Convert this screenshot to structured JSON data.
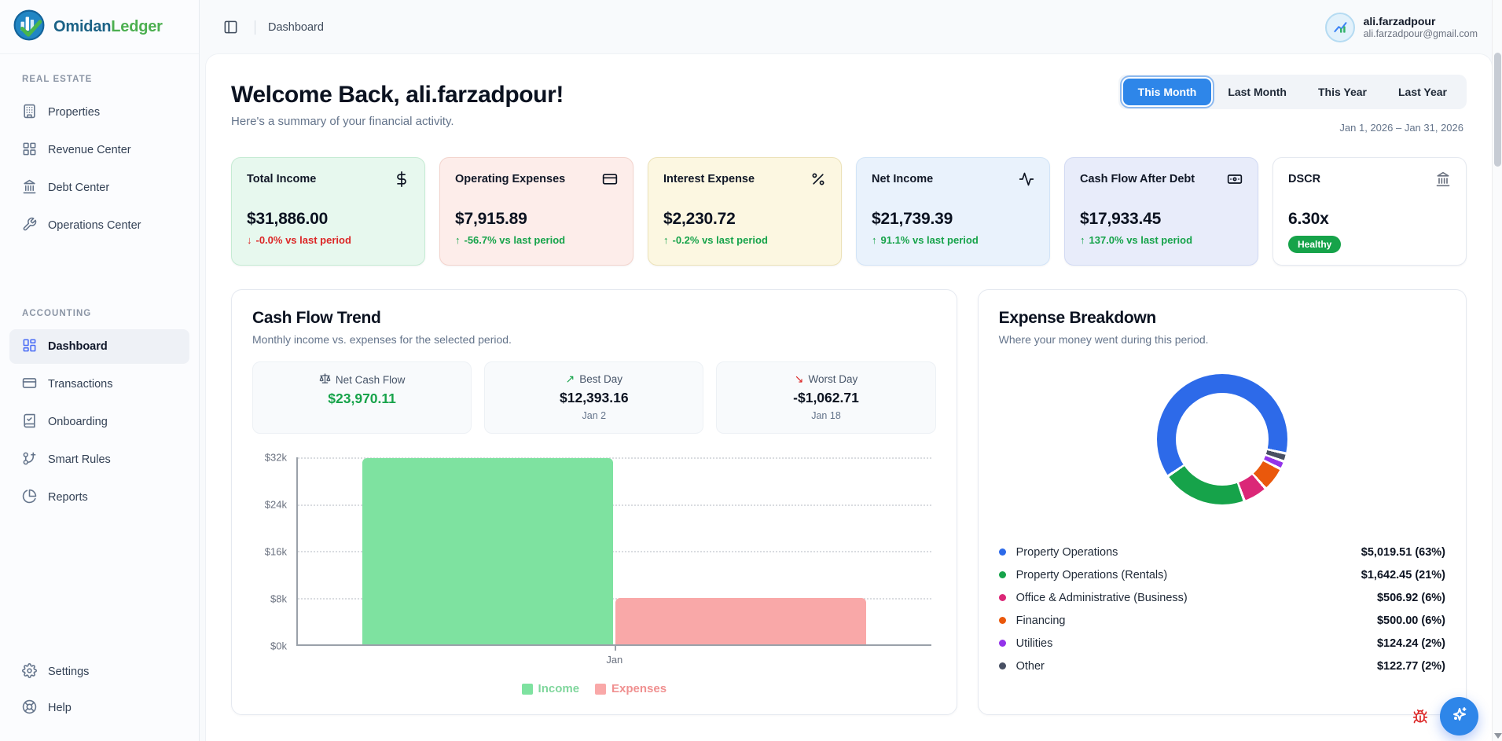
{
  "brand": {
    "primary": "Omidan",
    "secondary": "Ledger"
  },
  "sidebar": {
    "sections": [
      {
        "label": "REAL ESTATE",
        "items": [
          {
            "label": "Properties",
            "icon": "building-icon"
          },
          {
            "label": "Revenue Center",
            "icon": "layout-grid-icon"
          },
          {
            "label": "Debt Center",
            "icon": "landmark-icon"
          },
          {
            "label": "Operations Center",
            "icon": "wrench-icon"
          }
        ]
      },
      {
        "label": "ACCOUNTING",
        "items": [
          {
            "label": "Dashboard",
            "icon": "layout-dashboard-icon",
            "active": true
          },
          {
            "label": "Transactions",
            "icon": "credit-card-icon"
          },
          {
            "label": "Onboarding",
            "icon": "book-check-icon"
          },
          {
            "label": "Smart Rules",
            "icon": "smart-rules-icon"
          },
          {
            "label": "Reports",
            "icon": "pie-chart-icon"
          }
        ]
      }
    ],
    "footer_items": [
      {
        "label": "Settings",
        "icon": "gear-icon"
      },
      {
        "label": "Help",
        "icon": "life-buoy-icon"
      }
    ]
  },
  "header": {
    "breadcrumb": "Dashboard",
    "user": {
      "name": "ali.farzadpour",
      "email": "ali.farzadpour@gmail.com"
    }
  },
  "welcome": {
    "title": "Welcome Back, ali.farzadpour!",
    "subtitle": "Here's a summary of your financial activity.",
    "tabs": [
      "This Month",
      "Last Month",
      "This Year",
      "Last Year"
    ],
    "active_tab": "This Month",
    "date_range": "Jan 1, 2026 – Jan 31, 2026"
  },
  "kpis": [
    {
      "label": "Total Income",
      "icon": "dollar-sign-icon",
      "value": "$31,886.00",
      "arrow": "↓",
      "change": "-0.0% vs last period",
      "trend": "down"
    },
    {
      "label": "Operating Expenses",
      "icon": "credit-card-icon",
      "value": "$7,915.89",
      "arrow": "↑",
      "change": "-56.7% vs last period",
      "trend": "up"
    },
    {
      "label": "Interest Expense",
      "icon": "percent-icon",
      "value": "$2,230.72",
      "arrow": "↑",
      "change": "-0.2% vs last period",
      "trend": "up"
    },
    {
      "label": "Net Income",
      "icon": "activity-icon",
      "value": "$21,739.39",
      "arrow": "↑",
      "change": "91.1% vs last period",
      "trend": "up"
    },
    {
      "label": "Cash Flow After Debt",
      "icon": "banknote-icon",
      "value": "$17,933.45",
      "arrow": "↑",
      "change": "137.0% vs last period",
      "trend": "up"
    },
    {
      "label": "DSCR",
      "icon": "landmark-icon",
      "value": "6.30x",
      "badge": "Healthy",
      "badge_color": "#16a34a"
    }
  ],
  "cash_flow_panel": {
    "title": "Cash Flow Trend",
    "subtitle": "Monthly income vs. expenses for the selected period.",
    "stats": [
      {
        "icon": "scale-icon",
        "label": "Net Cash Flow",
        "value": "$23,970.11",
        "value_color": "green"
      },
      {
        "icon": "arrow-up-right-icon",
        "glyph": "↗",
        "label": "Best Day",
        "value": "$12,393.16",
        "sub": "Jan 2"
      },
      {
        "icon": "arrow-down-right-icon",
        "glyph": "↘",
        "label": "Worst Day",
        "value": "-$1,062.71",
        "sub": "Jan 18"
      }
    ]
  },
  "expense_panel": {
    "title": "Expense Breakdown",
    "subtitle": "Where your money went during this period."
  },
  "chart_data": [
    {
      "type": "bar",
      "title": "Cash Flow Trend",
      "categories": [
        "Jan"
      ],
      "series": [
        {
          "name": "Income",
          "values": [
            31886.0
          ],
          "color": "#7ee2a0",
          "label_color": "#7fd69c"
        },
        {
          "name": "Expenses",
          "values": [
            7915.89
          ],
          "color": "#f9a8a8",
          "label_color": "#f09090"
        }
      ],
      "ylim": [
        0,
        32000
      ],
      "ytick_labels": [
        "$0k",
        "$8k",
        "$16k",
        "$24k",
        "$32k"
      ],
      "grid": "horizontal-dotted",
      "legend_position": "bottom"
    },
    {
      "type": "pie",
      "donut": true,
      "title": "Expense Breakdown",
      "start_angle_deg": 237,
      "gap_deg": 2.4,
      "draw_order": [
        0,
        5,
        4,
        3,
        2,
        1
      ],
      "segments": [
        {
          "label": "Property Operations",
          "value": 5019.51,
          "pct": 63,
          "color": "#2d6ae9",
          "display": "$5,019.51 (63%)"
        },
        {
          "label": "Property Operations (Rentals)",
          "value": 1642.45,
          "pct": 21,
          "color": "#16a34a",
          "display": "$1,642.45 (21%)"
        },
        {
          "label": "Office & Administrative (Business)",
          "value": 506.92,
          "pct": 6,
          "color": "#db2777",
          "display": "$506.92 (6%)"
        },
        {
          "label": "Financing",
          "value": 500.0,
          "pct": 6,
          "color": "#ea580c",
          "display": "$500.00 (6%)"
        },
        {
          "label": "Utilities",
          "value": 124.24,
          "pct": 2,
          "color": "#9333ea",
          "display": "$124.24 (2%)"
        },
        {
          "label": "Other",
          "value": 122.77,
          "pct": 2,
          "color": "#485063",
          "display": "$122.77 (2%)"
        }
      ]
    }
  ]
}
